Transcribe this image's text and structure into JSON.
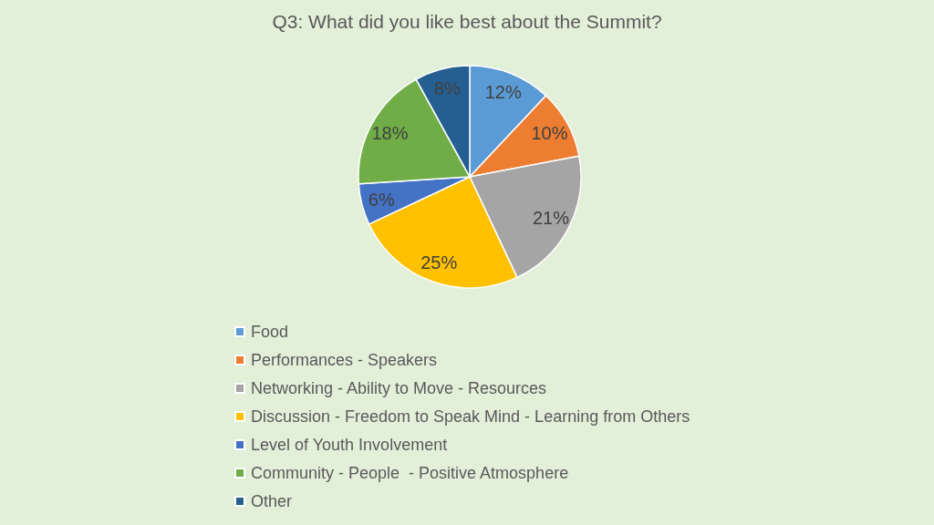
{
  "chart_data": {
    "type": "pie",
    "title": "Q3: What did you like best about the Summit?",
    "categories": [
      "Food",
      "Performances - Speakers",
      "Networking - Ability to Move - Resources",
      "Discussion - Freedom to Speak Mind - Learning from Others",
      "Level of Youth Involvement",
      "Community - People  - Positive Atmosphere",
      "Other"
    ],
    "values": [
      12,
      10,
      21,
      25,
      6,
      18,
      8
    ],
    "value_labels": [
      "12%",
      "10%",
      "21%",
      "25%",
      "6%",
      "18%",
      "8%"
    ],
    "colors": [
      "#5b9bd5",
      "#ed7d31",
      "#a5a5a5",
      "#ffc000",
      "#4472c4",
      "#70ad47",
      "#255e91"
    ],
    "legend": "bottom"
  }
}
